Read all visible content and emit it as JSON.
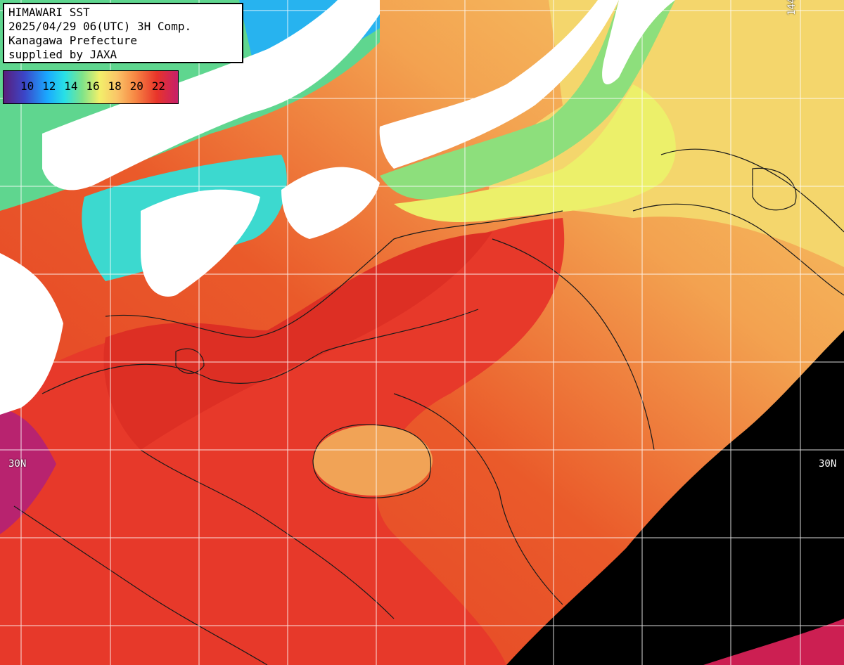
{
  "info": {
    "line1": "HIMAWARI SST",
    "line2": "2025/04/29 06(UTC) 3H Comp.",
    "line3": "Kanagawa Prefecture",
    "line4": "supplied by JAXA"
  },
  "legend": {
    "ticks": [
      "10",
      "12",
      "14",
      "16",
      "18",
      "20",
      "22"
    ]
  },
  "grid_labels": {
    "lat_left": "30N",
    "lat_right": "30N",
    "lon_top": "144E"
  },
  "colors": {
    "land": "#ffffff",
    "no_data": "#000000",
    "warm": "#e8342a",
    "cool": "#28e0e6"
  }
}
